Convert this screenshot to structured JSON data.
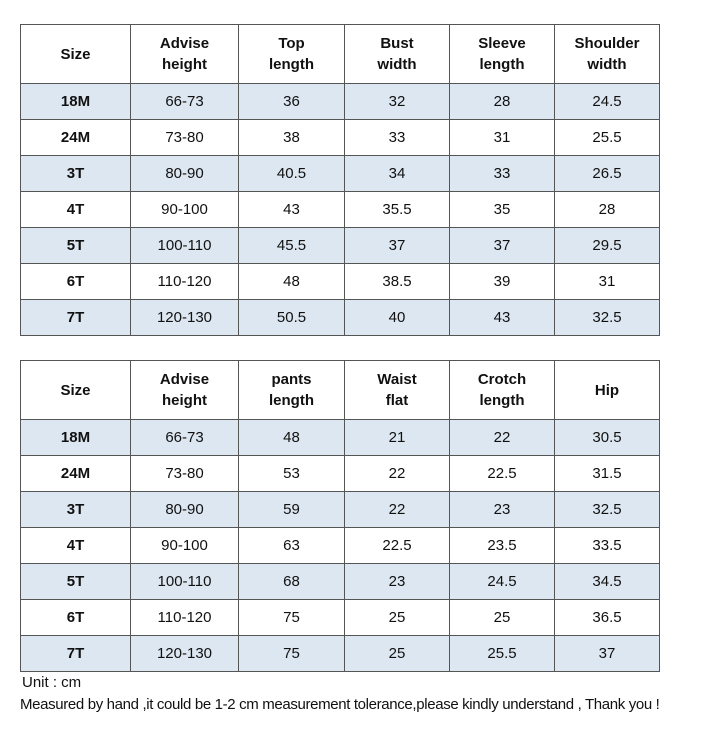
{
  "tables": [
    {
      "header": [
        "Size",
        "Advise\nheight",
        "Top\nlength",
        "Bust\nwidth",
        "Sleeve\nlength",
        "Shoulder\nwidth"
      ],
      "rows": [
        [
          "18M",
          "66-73",
          "36",
          "32",
          "28",
          "24.5"
        ],
        [
          "24M",
          "73-80",
          "38",
          "33",
          "31",
          "25.5"
        ],
        [
          "3T",
          "80-90",
          "40.5",
          "34",
          "33",
          "26.5"
        ],
        [
          "4T",
          "90-100",
          "43",
          "35.5",
          "35",
          "28"
        ],
        [
          "5T",
          "100-110",
          "45.5",
          "37",
          "37",
          "29.5"
        ],
        [
          "6T",
          "110-120",
          "48",
          "38.5",
          "39",
          "31"
        ],
        [
          "7T",
          "120-130",
          "50.5",
          "40",
          "43",
          "32.5"
        ]
      ]
    },
    {
      "header": [
        "Size",
        "Advise\nheight",
        "pants\nlength",
        "Waist\nflat",
        "Crotch\nlength",
        "Hip"
      ],
      "rows": [
        [
          "18M",
          "66-73",
          "48",
          "21",
          "22",
          "30.5"
        ],
        [
          "24M",
          "73-80",
          "53",
          "22",
          "22.5",
          "31.5"
        ],
        [
          "3T",
          "80-90",
          "59",
          "22",
          "23",
          "32.5"
        ],
        [
          "4T",
          "90-100",
          "63",
          "22.5",
          "23.5",
          "33.5"
        ],
        [
          "5T",
          "100-110",
          "68",
          "23",
          "24.5",
          "34.5"
        ],
        [
          "6T",
          "110-120",
          "75",
          "25",
          "25",
          "36.5"
        ],
        [
          "7T",
          "120-130",
          "75",
          "25",
          "25.5",
          "37"
        ]
      ]
    }
  ],
  "notes": [
    "Unit : cm",
    "Measured by hand ,it could be 1-2 cm measurement tolerance,please kindly understand , Thank you !"
  ]
}
